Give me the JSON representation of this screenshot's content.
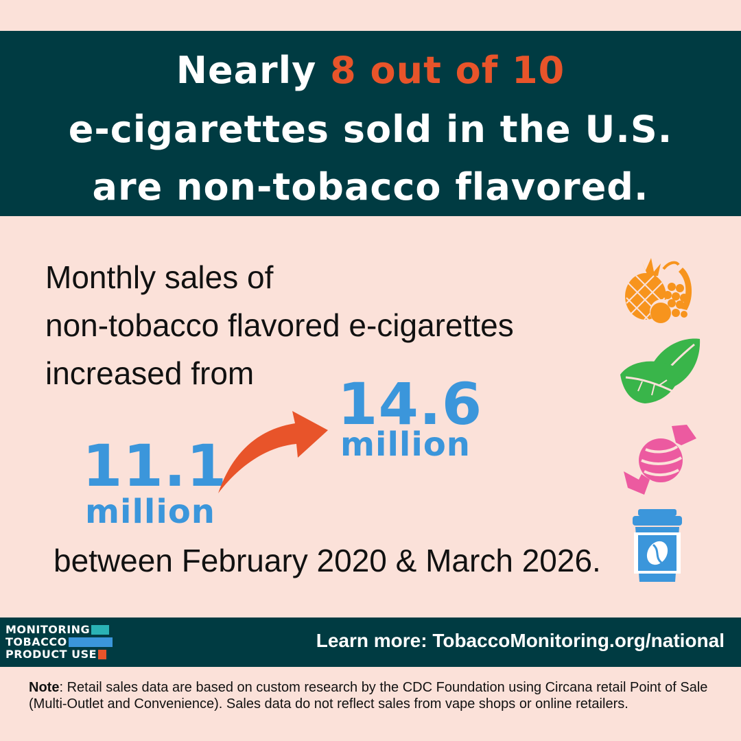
{
  "header": {
    "line1_prefix": "Nearly ",
    "line1_highlight": "8 out of 10",
    "line2": "e-cigarettes sold in the U.S.",
    "line3": "are non-tobacco flavored."
  },
  "body": {
    "intro_line1": "Monthly sales of",
    "intro_line2": "non-tobacco flavored e-cigarettes",
    "intro_line3": "increased from",
    "from_value": "11.1",
    "from_unit": "million",
    "to_value": "14.6",
    "to_unit": "million",
    "between": "between February 2020 & March 2026."
  },
  "icons": [
    "fruit-icon",
    "mint-leaf-icon",
    "candy-icon",
    "coffee-cup-icon"
  ],
  "footer": {
    "logo_line1": "MONITORING",
    "logo_line2": "TOBACCO",
    "logo_line3": "PRODUCT USE",
    "learn_more": "Learn more: TobaccoMonitoring.org/national"
  },
  "note": {
    "label": "Note",
    "text": ": Retail sales data are based on custom research by the CDC Foundation using Circana retail Point of Sale (Multi-Outlet and Convenience). Sales data do not reflect sales from vape shops or online retailers."
  },
  "colors": {
    "background": "#fbe1d9",
    "dark_teal": "#003b42",
    "accent_orange": "#e8542a",
    "number_blue": "#3b96db"
  }
}
